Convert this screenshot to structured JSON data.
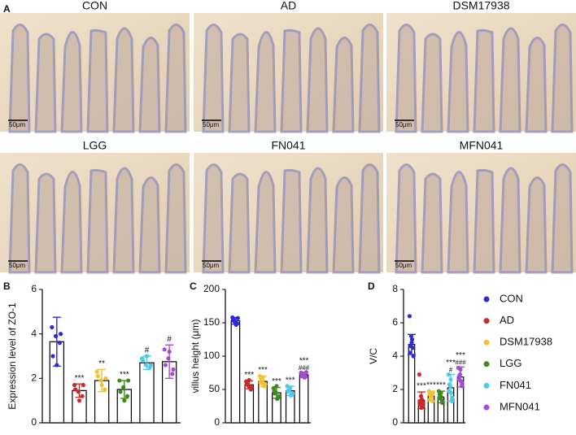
{
  "panel_a": {
    "label": "A",
    "images": [
      {
        "title": "CON",
        "scale": "50μm"
      },
      {
        "title": "AD",
        "scale": "50μm"
      },
      {
        "title": "DSM17938",
        "scale": "50μm"
      },
      {
        "title": "LGG",
        "scale": "50μm"
      },
      {
        "title": "FN041",
        "scale": "50μm"
      },
      {
        "title": "MFN041",
        "scale": "50μm"
      }
    ]
  },
  "chart_data": [
    {
      "type": "bar",
      "panel": "B",
      "ylabel": "Expression level of ZO-1",
      "ylim": [
        0,
        6
      ],
      "yticks": [
        0,
        2,
        4,
        6
      ],
      "series": [
        {
          "name": "CON",
          "color": "#2b2bd6",
          "values": [
            3.65
          ],
          "error": [
            1.1
          ],
          "points": [
            4.3,
            3.9,
            3.6,
            3.0,
            2.6,
            4.0
          ],
          "sig": null,
          "sig2": null
        },
        {
          "name": "AD",
          "color": "#cc2a2a",
          "values": [
            1.45
          ],
          "error": [
            0.3
          ],
          "points": [
            1.7,
            1.4,
            1.2,
            1.5,
            1.0,
            1.7
          ],
          "sig": "***",
          "sig2": null
        },
        {
          "name": "DSM17938",
          "color": "#f3c130",
          "values": [
            1.9
          ],
          "error": [
            0.5
          ],
          "points": [
            2.3,
            1.9,
            1.5,
            2.1,
            1.7,
            2.0
          ],
          "sig": "**",
          "sig2": null
        },
        {
          "name": "LGG",
          "color": "#3e8a1e",
          "values": [
            1.5
          ],
          "error": [
            0.4
          ],
          "points": [
            1.9,
            1.6,
            1.2,
            1.4,
            1.0,
            1.9
          ],
          "sig": "***",
          "sig2": null
        },
        {
          "name": "FN041",
          "color": "#4fc8ea",
          "values": [
            2.7
          ],
          "error": [
            0.3
          ],
          "points": [
            2.9,
            2.6,
            2.5,
            2.8,
            3.0,
            2.6
          ],
          "sig": "#",
          "sig2": null
        },
        {
          "name": "MFN041",
          "color": "#a64bd6",
          "values": [
            2.75
          ],
          "error": [
            0.75
          ],
          "points": [
            3.3,
            2.9,
            2.2,
            2.6,
            3.2,
            2.4
          ],
          "sig": "#",
          "sig2": null
        }
      ]
    },
    {
      "type": "bar",
      "panel": "C",
      "ylabel": "villus height (μm)",
      "ylim": [
        0,
        200
      ],
      "yticks": [
        0,
        50,
        100,
        150,
        200
      ],
      "series": [
        {
          "name": "CON",
          "color": "#2b2bd6",
          "values": [
            153
          ],
          "error": [
            5
          ],
          "points": [
            158,
            152,
            149,
            155,
            150,
            157,
            153,
            147
          ],
          "sig": null,
          "sig2": null
        },
        {
          "name": "AD",
          "color": "#cc2a2a",
          "values": [
            57
          ],
          "error": [
            6
          ],
          "points": [
            62,
            55,
            50,
            58,
            64,
            53,
            60,
            54
          ],
          "sig": "***",
          "sig2": null
        },
        {
          "name": "DSM17938",
          "color": "#f3c130",
          "values": [
            62
          ],
          "error": [
            8
          ],
          "points": [
            70,
            63,
            55,
            60,
            68,
            58,
            66,
            57
          ],
          "sig": "***",
          "sig2": null
        },
        {
          "name": "LGG",
          "color": "#3e8a1e",
          "values": [
            45
          ],
          "error": [
            8
          ],
          "points": [
            52,
            45,
            38,
            48,
            55,
            40,
            44,
            36
          ],
          "sig": "***",
          "sig2": null
        },
        {
          "name": "FN041",
          "color": "#4fc8ea",
          "values": [
            48
          ],
          "error": [
            7
          ],
          "points": [
            55,
            50,
            42,
            47,
            53,
            44,
            49,
            41
          ],
          "sig": "***",
          "sig2": null
        },
        {
          "name": "MFN041",
          "color": "#a64bd6",
          "values": [
            72
          ],
          "error": [
            4
          ],
          "points": [
            75,
            72,
            69,
            74,
            70,
            76,
            71,
            68
          ],
          "sig": "***",
          "sig2": "###"
        }
      ]
    },
    {
      "type": "bar",
      "panel": "D",
      "ylabel": "V/C",
      "ylim": [
        0,
        8
      ],
      "yticks": [
        0,
        2,
        4,
        6,
        8
      ],
      "series": [
        {
          "name": "CON",
          "color": "#2b2bd6",
          "values": [
            4.7
          ],
          "error": [
            0.6
          ],
          "points": [
            6.4,
            5.2,
            4.5,
            4.2,
            4.8,
            4.0,
            4.6,
            5.0
          ],
          "sig": null,
          "sig2": null
        },
        {
          "name": "AD",
          "color": "#cc2a2a",
          "values": [
            1.35
          ],
          "error": [
            0.5
          ],
          "points": [
            2.9,
            1.6,
            1.0,
            1.3,
            0.9,
            1.2,
            1.1,
            1.4
          ],
          "sig": "***",
          "sig2": null
        },
        {
          "name": "DSM17938",
          "color": "#f3c130",
          "values": [
            1.6
          ],
          "error": [
            0.3
          ],
          "points": [
            1.9,
            1.6,
            1.3,
            1.7,
            1.5,
            1.8,
            1.4,
            1.6
          ],
          "sig": "***",
          "sig2": null
        },
        {
          "name": "LGG",
          "color": "#3e8a1e",
          "values": [
            1.55
          ],
          "error": [
            0.35
          ],
          "points": [
            1.9,
            1.6,
            1.2,
            1.5,
            1.8,
            1.3,
            1.7,
            1.4
          ],
          "sig": "***",
          "sig2": null
        },
        {
          "name": "FN041",
          "color": "#4fc8ea",
          "values": [
            2.1
          ],
          "error": [
            0.8
          ],
          "points": [
            2.9,
            2.2,
            1.3,
            1.9,
            2.6,
            1.5,
            2.3,
            1.8
          ],
          "sig": "***",
          "sig2": "#"
        },
        {
          "name": "MFN041",
          "color": "#a64bd6",
          "values": [
            2.75
          ],
          "error": [
            0.6
          ],
          "points": [
            3.3,
            2.9,
            2.2,
            2.6,
            3.2,
            2.4,
            2.8,
            2.5
          ],
          "sig": "***",
          "sig2": "###"
        }
      ]
    }
  ]
}
